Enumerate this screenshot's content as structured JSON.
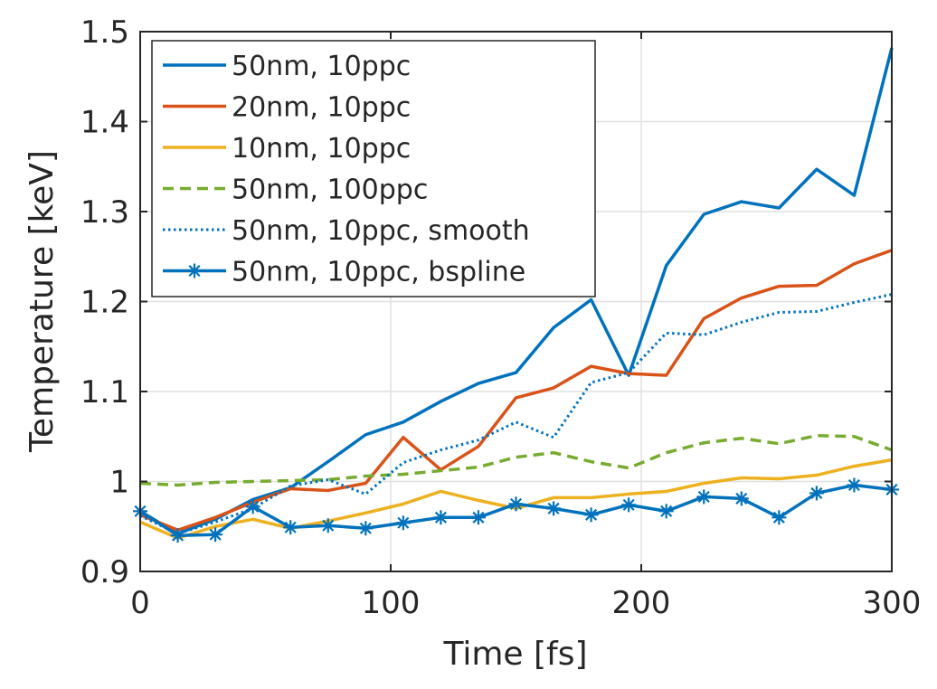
{
  "chart_data": {
    "type": "line",
    "title": "",
    "xlabel": "Time [fs]",
    "ylabel": "Temperature [keV]",
    "xlim": [
      0,
      300
    ],
    "ylim": [
      0.9,
      1.5
    ],
    "xticks": [
      0,
      100,
      200,
      300
    ],
    "xtick_labels": [
      "0",
      "100",
      "200",
      "300"
    ],
    "yticks": [
      0.9,
      1.0,
      1.1,
      1.2,
      1.3,
      1.4,
      1.5
    ],
    "ytick_labels": [
      "0.9",
      "1",
      "1.1",
      "1.2",
      "1.3",
      "1.4",
      "1.5"
    ],
    "grid": true,
    "legend_position": "top-left",
    "x": [
      0,
      15,
      30,
      45,
      60,
      75,
      90,
      105,
      120,
      135,
      150,
      165,
      180,
      195,
      210,
      225,
      240,
      255,
      270,
      285,
      300
    ],
    "series": [
      {
        "name": "50nm, 10ppc",
        "color": "#0072BD",
        "style": "solid",
        "marker": "none",
        "values": [
          0.967,
          0.942,
          0.958,
          0.98,
          0.993,
          1.022,
          1.052,
          1.066,
          1.089,
          1.109,
          1.121,
          1.171,
          1.202,
          1.118,
          1.24,
          1.297,
          1.311,
          1.304,
          1.347,
          1.318,
          1.482
        ]
      },
      {
        "name": "20nm, 10ppc",
        "color": "#D95319",
        "style": "solid",
        "marker": "none",
        "values": [
          0.963,
          0.946,
          0.96,
          0.977,
          0.992,
          0.99,
          0.998,
          1.049,
          1.013,
          1.039,
          1.093,
          1.104,
          1.128,
          1.12,
          1.118,
          1.181,
          1.204,
          1.217,
          1.218,
          1.242,
          1.257
        ]
      },
      {
        "name": "10nm, 10ppc",
        "color": "#EDB120",
        "style": "solid",
        "marker": "none",
        "values": [
          0.955,
          0.937,
          0.95,
          0.958,
          0.948,
          0.956,
          0.965,
          0.975,
          0.989,
          0.979,
          0.97,
          0.982,
          0.982,
          0.986,
          0.989,
          0.998,
          1.004,
          1.003,
          1.007,
          1.017,
          1.024
        ]
      },
      {
        "name": "50nm, 100ppc",
        "color": "#77AC30",
        "style": "dashed",
        "marker": "none",
        "values": [
          0.998,
          0.996,
          0.999,
          1.0,
          1.001,
          1.002,
          1.006,
          1.008,
          1.012,
          1.016,
          1.027,
          1.032,
          1.022,
          1.015,
          1.032,
          1.043,
          1.048,
          1.042,
          1.051,
          1.05,
          1.035
        ]
      },
      {
        "name": "50nm, 10ppc, smooth",
        "color": "#0072BD",
        "style": "dotted",
        "marker": "none",
        "values": [
          0.962,
          0.942,
          0.955,
          0.97,
          0.995,
          1.002,
          0.986,
          1.021,
          1.035,
          1.046,
          1.066,
          1.049,
          1.11,
          1.121,
          1.165,
          1.163,
          1.177,
          1.188,
          1.189,
          1.199,
          1.208
        ]
      },
      {
        "name": "50nm, 10ppc, bspline",
        "color": "#0072BD",
        "style": "solid",
        "marker": "asterisk",
        "values": [
          0.967,
          0.94,
          0.941,
          0.972,
          0.949,
          0.951,
          0.948,
          0.954,
          0.96,
          0.96,
          0.975,
          0.97,
          0.963,
          0.974,
          0.967,
          0.983,
          0.981,
          0.96,
          0.987,
          0.996,
          0.991
        ]
      }
    ]
  }
}
